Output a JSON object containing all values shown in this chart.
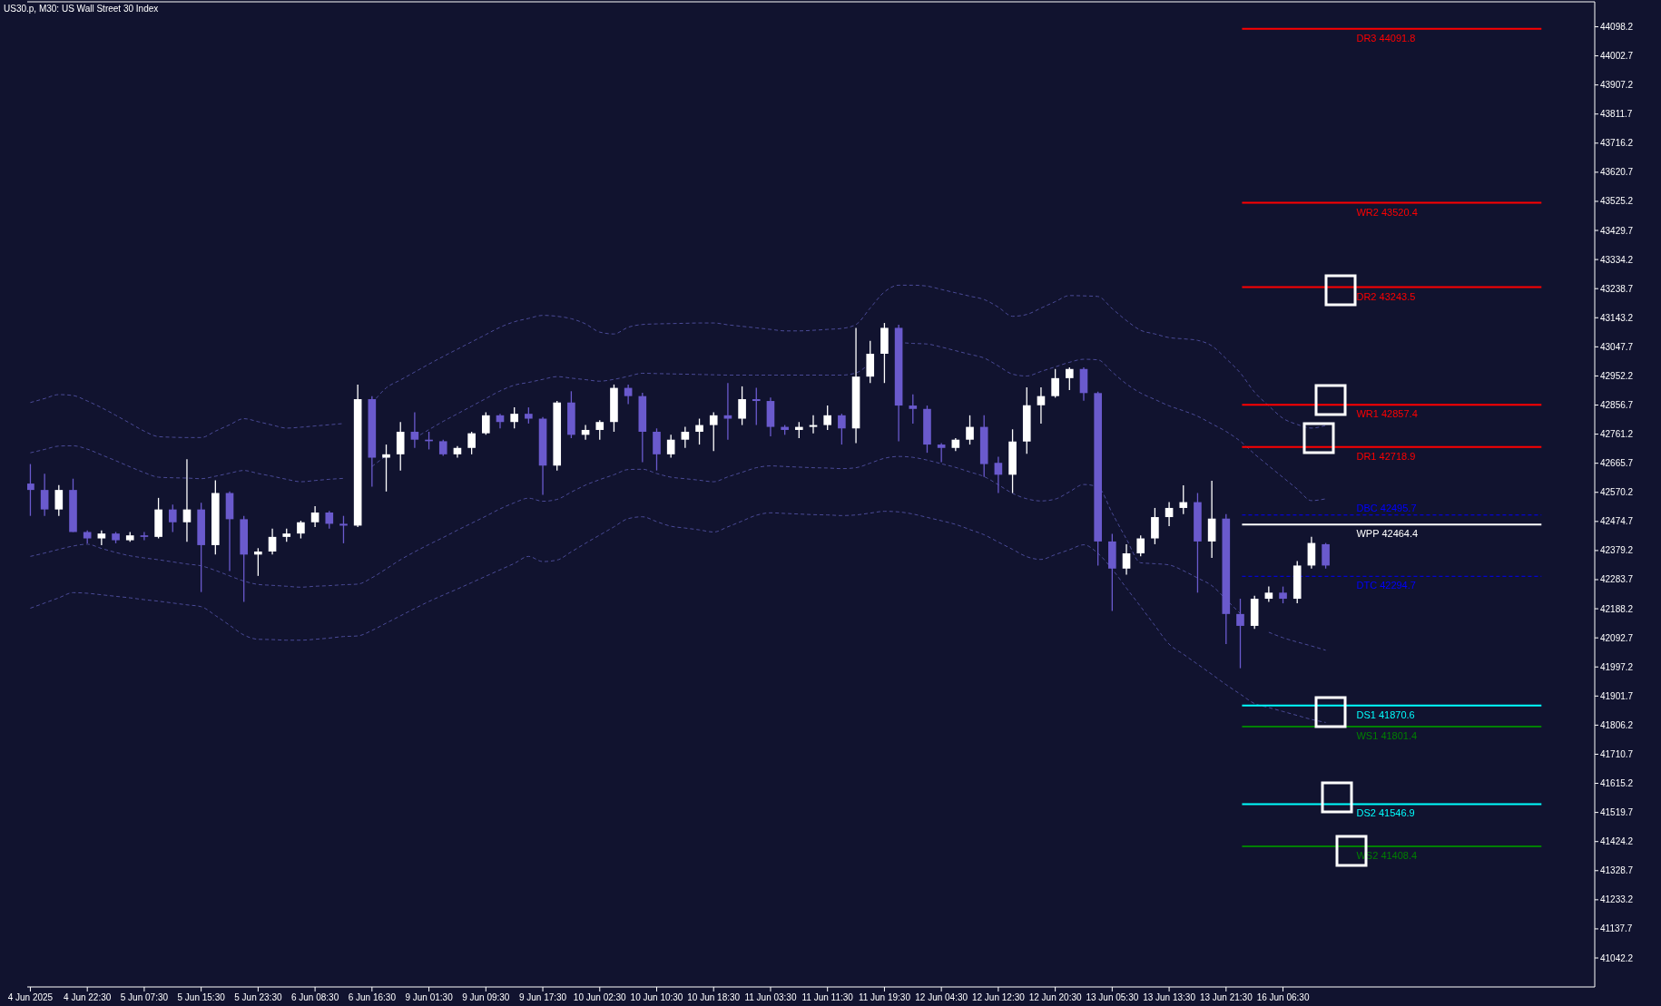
{
  "chart_data": {
    "type": "candlestick",
    "title": "US30.p, M30: US Wall Street 30 Index",
    "categories": [
      "4 Jun 2025",
      null,
      null,
      null,
      "4 Jun 22:30",
      null,
      null,
      null,
      "5 Jun 07:30",
      null,
      null,
      null,
      "5 Jun 15:30",
      null,
      null,
      null,
      "5 Jun 23:30",
      null,
      null,
      null,
      "6 Jun 08:30",
      null,
      null,
      null,
      "6 Jun 16:30",
      null,
      null,
      null,
      "9 Jun 01:30",
      null,
      null,
      null,
      "9 Jun 09:30",
      null,
      null,
      null,
      "9 Jun 17:30",
      null,
      null,
      null,
      "10 Jun 02:30",
      null,
      null,
      null,
      "10 Jun 10:30",
      null,
      null,
      null,
      "10 Jun 18:30",
      null,
      null,
      null,
      "11 Jun 03:30",
      null,
      null,
      null,
      "11 Jun 11:30",
      null,
      null,
      null,
      "11 Jun 19:30",
      null,
      null,
      null,
      "12 Jun 04:30",
      null,
      null,
      null,
      "12 Jun 12:30",
      null,
      null,
      null,
      "12 Jun 20:30",
      null,
      null,
      null,
      "13 Jun 05:30",
      null,
      null,
      null,
      "13 Jun 13:30",
      null,
      null,
      null,
      "13 Jun 21:30",
      null,
      null,
      null,
      "16 Jun 06:30",
      null,
      null,
      null
    ],
    "ohlc": [
      [
        42599,
        42663,
        42493,
        42578
      ],
      [
        42578,
        42631,
        42493,
        42514
      ],
      [
        42514,
        42594,
        42493,
        42578
      ],
      [
        42578,
        42615,
        42440,
        42440
      ],
      [
        42440,
        42445,
        42403,
        42419
      ],
      [
        42419,
        42445,
        42397,
        42435
      ],
      [
        42435,
        42440,
        42403,
        42413
      ],
      [
        42413,
        42440,
        42408,
        42429
      ],
      [
        42429,
        42440,
        42413,
        42424
      ],
      [
        42424,
        42552,
        42419,
        42514
      ],
      [
        42514,
        42530,
        42440,
        42472
      ],
      [
        42472,
        42679,
        42408,
        42514
      ],
      [
        42514,
        42536,
        42243,
        42397
      ],
      [
        42397,
        42610,
        42366,
        42568
      ],
      [
        42568,
        42573,
        42312,
        42482
      ],
      [
        42482,
        42493,
        42211,
        42366
      ],
      [
        42366,
        42387,
        42296,
        42376
      ],
      [
        42376,
        42451,
        42366,
        42424
      ],
      [
        42424,
        42451,
        42408,
        42435
      ],
      [
        42435,
        42477,
        42419,
        42472
      ],
      [
        42472,
        42525,
        42456,
        42504
      ],
      [
        42504,
        42509,
        42451,
        42467
      ],
      [
        42467,
        42493,
        42403,
        42461
      ],
      [
        42461,
        42924,
        42456,
        42876
      ],
      [
        42876,
        42886,
        42589,
        42684
      ],
      [
        42684,
        42727,
        42573,
        42695
      ],
      [
        42695,
        42801,
        42642,
        42769
      ],
      [
        42769,
        42833,
        42716,
        42743
      ],
      [
        42743,
        42769,
        42711,
        42738
      ],
      [
        42738,
        42743,
        42690,
        42695
      ],
      [
        42695,
        42722,
        42684,
        42716
      ],
      [
        42716,
        42769,
        42695,
        42764
      ],
      [
        42764,
        42833,
        42759,
        42823
      ],
      [
        42823,
        42828,
        42780,
        42801
      ],
      [
        42801,
        42849,
        42780,
        42828
      ],
      [
        42828,
        42849,
        42796,
        42812
      ],
      [
        42812,
        42817,
        42562,
        42658
      ],
      [
        42658,
        42870,
        42642,
        42865
      ],
      [
        42865,
        42902,
        42748,
        42759
      ],
      [
        42759,
        42791,
        42743,
        42775
      ],
      [
        42775,
        42807,
        42743,
        42801
      ],
      [
        42801,
        42924,
        42769,
        42913
      ],
      [
        42913,
        42924,
        42860,
        42886
      ],
      [
        42886,
        42897,
        42669,
        42769
      ],
      [
        42769,
        42780,
        42642,
        42695
      ],
      [
        42695,
        42759,
        42684,
        42743
      ],
      [
        42743,
        42785,
        42716,
        42769
      ],
      [
        42769,
        42812,
        42727,
        42791
      ],
      [
        42791,
        42833,
        42706,
        42823
      ],
      [
        42823,
        42929,
        42743,
        42812
      ],
      [
        42812,
        42918,
        42791,
        42876
      ],
      [
        42876,
        42913,
        42791,
        42870
      ],
      [
        42870,
        42881,
        42754,
        42785
      ],
      [
        42785,
        42791,
        42759,
        42775
      ],
      [
        42775,
        42801,
        42748,
        42785
      ],
      [
        42785,
        42823,
        42764,
        42791
      ],
      [
        42791,
        42855,
        42775,
        42823
      ],
      [
        42823,
        42828,
        42727,
        42780
      ],
      [
        42780,
        43110,
        42732,
        42950
      ],
      [
        42950,
        43067,
        42929,
        43025
      ],
      [
        43025,
        43126,
        42929,
        43110
      ],
      [
        43110,
        43120,
        42738,
        42855
      ],
      [
        42855,
        42892,
        42796,
        42844
      ],
      [
        42844,
        42855,
        42700,
        42727
      ],
      [
        42727,
        42732,
        42669,
        42716
      ],
      [
        42716,
        42748,
        42706,
        42743
      ],
      [
        42743,
        42823,
        42727,
        42785
      ],
      [
        42785,
        42823,
        42621,
        42663
      ],
      [
        42667,
        42687,
        42568,
        42628
      ],
      [
        42628,
        42777,
        42568,
        42737
      ],
      [
        42737,
        42915,
        42697,
        42856
      ],
      [
        42856,
        42915,
        42796,
        42886
      ],
      [
        42886,
        42975,
        42881,
        42945
      ],
      [
        42945,
        42980,
        42906,
        42975
      ],
      [
        42975,
        42980,
        42871,
        42896
      ],
      [
        42896,
        42901,
        42330,
        42409
      ],
      [
        42409,
        42434,
        42181,
        42320
      ],
      [
        42320,
        42400,
        42300,
        42370
      ],
      [
        42370,
        42429,
        42360,
        42419
      ],
      [
        42419,
        42519,
        42400,
        42489
      ],
      [
        42489,
        42538,
        42459,
        42519
      ],
      [
        42519,
        42593,
        42499,
        42538
      ],
      [
        42538,
        42568,
        42241,
        42409
      ],
      [
        42409,
        42608,
        42355,
        42484
      ],
      [
        42484,
        42499,
        42072,
        42171
      ],
      [
        42171,
        42221,
        41993,
        42132
      ],
      [
        42132,
        42231,
        42122,
        42221
      ],
      [
        42221,
        42261,
        42211,
        42241
      ],
      [
        42241,
        42261,
        42206,
        42221
      ],
      [
        42221,
        42345,
        42206,
        42330
      ],
      [
        42330,
        42424,
        42320,
        42404
      ],
      [
        42400,
        42404,
        42320,
        42330
      ]
    ],
    "colors": [
      "#6a5acd",
      "#6a5acd",
      "#ffffff",
      "#6a5acd",
      "#6a5acd",
      "#ffffff",
      "#6a5acd",
      "#ffffff",
      "#6a5acd",
      "#ffffff",
      "#6a5acd",
      "#ffffff",
      "#6a5acd",
      "#ffffff",
      "#6a5acd",
      "#6a5acd",
      "#ffffff",
      "#ffffff",
      "#ffffff",
      "#ffffff",
      "#ffffff",
      "#6a5acd",
      "#6a5acd",
      "#ffffff",
      "#6a5acd",
      "#ffffff",
      "#ffffff",
      "#6a5acd",
      "#6a5acd",
      "#6a5acd",
      "#ffffff",
      "#ffffff",
      "#ffffff",
      "#6a5acd",
      "#ffffff",
      "#6a5acd",
      "#6a5acd",
      "#ffffff",
      "#6a5acd",
      "#ffffff",
      "#ffffff",
      "#ffffff",
      "#6a5acd",
      "#6a5acd",
      "#6a5acd",
      "#ffffff",
      "#ffffff",
      "#ffffff",
      "#ffffff",
      "#6a5acd",
      "#ffffff",
      "#6a5acd",
      "#6a5acd",
      "#6a5acd",
      "#ffffff",
      "#ffffff",
      "#ffffff",
      "#6a5acd",
      "#ffffff",
      "#ffffff",
      "#ffffff",
      "#6a5acd",
      "#6a5acd",
      "#6a5acd",
      "#6a5acd",
      "#ffffff",
      "#ffffff",
      "#6a5acd",
      "#6a5acd",
      "#ffffff",
      "#ffffff",
      "#ffffff",
      "#ffffff",
      "#ffffff",
      "#6a5acd",
      "#6a5acd",
      "#6a5acd",
      "#ffffff",
      "#ffffff",
      "#ffffff",
      "#ffffff",
      "#ffffff",
      "#6a5acd",
      "#ffffff",
      "#6a5acd",
      "#6a5acd",
      "#ffffff",
      "#ffffff",
      "#6a5acd",
      "#ffffff",
      "#ffffff",
      "#6a5acd"
    ],
    "series": [
      {
        "type": "line",
        "color": "#4a4a96",
        "line_style": "dashed",
        "values": [
          42865,
          42878,
          42891,
          42888,
          42870,
          42848,
          42823,
          42797,
          42771,
          42753,
          42751,
          42750,
          42750,
          42771,
          42792,
          42812,
          42802,
          42791,
          42781,
          42784,
          42788,
          42792,
          42796,
          null,
          42862,
          42913,
          42939,
          42965,
          42991,
          43016,
          43040,
          43064,
          43088,
          43112,
          43130,
          43141,
          43151,
          43148,
          43140,
          43123,
          43096,
          43090,
          43112,
          43121,
          43123,
          43124,
          43125,
          43126,
          43126,
          43120,
          43115,
          43110,
          43105,
          43100,
          43100,
          43102,
          43105,
          43108,
          43121,
          43175,
          43228,
          43250,
          43250,
          43247,
          43236,
          43225,
          43214,
          43203,
          43178,
          43148,
          43154,
          43175,
          43196,
          43216,
          43215,
          43213,
          43173,
          43134,
          43102,
          43090,
          43078,
          43074,
          43069,
          43051,
          43009,
          42962,
          42899,
          42854,
          42813,
          42793,
          42781,
          42790
        ]
      },
      {
        "type": "line",
        "color": "#4a4a96",
        "line_style": "dashed",
        "values": [
          42700,
          42711,
          42722,
          42723,
          42712,
          42693,
          42674,
          42654,
          42635,
          42620,
          42618,
          42617,
          42615,
          42623,
          42633,
          42642,
          42632,
          42623,
          42613,
          42605,
          42609,
          42613,
          42616,
          null,
          42655,
          42691,
          null,
          42748,
          42776,
          42803,
          42828,
          42853,
          42878,
          42903,
          42922,
          42931,
          42941,
          42950,
          42945,
          42940,
          42935,
          42941,
          42951,
          42961,
          42960,
          42959,
          42958,
          42957,
          42956,
          42955,
          42955,
          42955,
          42955,
          42955,
          42955,
          42955,
          42955,
          42955,
          42962,
          42996,
          null,
          43062,
          43059,
          43057,
          43047,
          43035,
          43023,
          43011,
          42985,
          42958,
          42952,
          42967,
          42982,
          42997,
          43007,
          43005,
          42965,
          42926,
          42896,
          42875,
          42854,
          42838,
          42820,
          42795,
          42770,
          42738,
          42696,
          42657,
          42619,
          42581,
          42543,
          42549
        ]
      },
      {
        "type": "line",
        "color": "#4a4a96",
        "line_style": "dashed",
        "values": [
          42360,
          42371,
          42383,
          42394,
          42400,
          42386,
          42373,
          42362,
          42355,
          42349,
          42342,
          42335,
          42329,
          42314,
          42296,
          42279,
          42268,
          42265,
          42262,
          42259,
          42262,
          42264,
          42267,
          42269,
          42290,
          42319,
          42349,
          42375,
          42399,
          42422,
          42446,
          42469,
          42492,
          42516,
          42536,
          42551,
          42541,
          42547,
          42571,
          42594,
          42612,
          42628,
          42645,
          42646,
          42632,
          42620,
          42615,
          42610,
          42605,
          42621,
          42636,
          42651,
          42657,
          42655,
          42653,
          42651,
          42650,
          42648,
          42651,
          42666,
          42682,
          42688,
          42685,
          42676,
          42664,
          42652,
          42637,
          42622,
          42595,
          42567,
          42549,
          42542,
          42548,
          42572,
          42596,
          42588,
          42502,
          42417,
          42339,
          42336,
          42332,
          42313,
          42289,
          42264,
          42219,
          42172,
          null,
          42111,
          42093,
          42079,
          42066,
          42052
        ]
      },
      {
        "type": "line",
        "color": "#4a4a96",
        "line_style": "dashed",
        "values": [
          42190,
          42207,
          42224,
          42241,
          42239,
          42234,
          42229,
          42224,
          42218,
          42213,
          42207,
          42201,
          42195,
          42166,
          42134,
          42102,
          42088,
          42087,
          42085,
          42085,
          42088,
          42092,
          42097,
          42099,
          42117,
          42141,
          42165,
          42189,
          42212,
          42233,
          42253,
          42274,
          42295,
          42316,
          42337,
          42360,
          42343,
          42348,
          42375,
          42403,
          42430,
          42457,
          42484,
          42490,
          42474,
          42459,
          42453,
          42447,
          42440,
          42457,
          42476,
          42495,
          42503,
          42501,
          42499,
          42497,
          42496,
          42494,
          42496,
          42502,
          42508,
          42506,
          42499,
          42488,
          42477,
          42465,
          42448,
          42431,
          42407,
          42383,
          42359,
          42350,
          42366,
          42382,
          42398,
          42370,
          42318,
          42256,
          42195,
          42133,
          42072,
          42039,
          42006,
          41973,
          41939,
          41908,
          41877,
          41864,
          41851,
          41838,
          41825,
          41815
        ]
      }
    ],
    "ylim": [
      40947,
      44180
    ],
    "yticks": [
      44098.2,
      44002.7,
      43907.2,
      43811.7,
      43716.2,
      43620.7,
      43525.2,
      43429.7,
      43334.2,
      43238.7,
      43143.2,
      43047.7,
      42952.2,
      42856.7,
      42761.2,
      42665.7,
      42570.2,
      42474.7,
      42379.2,
      42283.7,
      42188.2,
      42092.7,
      41997.2,
      41901.7,
      41806.2,
      41710.7,
      41615.2,
      41519.7,
      41424.2,
      41328.7,
      41233.2,
      41137.7,
      41042.2
    ],
    "ref_lines": [
      {
        "axis": "y",
        "value": 44091.8,
        "label": "DR3 44091.8",
        "color": "#ff0000"
      },
      {
        "axis": "y",
        "value": 43520.4,
        "label": "WR2 43520.4",
        "color": "#ff0000"
      },
      {
        "axis": "y",
        "value": 43243.5,
        "label": "DR2 43243.5",
        "color": "#ff0000"
      },
      {
        "axis": "y",
        "value": 42857.4,
        "label": "WR1 42857.4",
        "color": "#ff0000"
      },
      {
        "axis": "y",
        "value": 42718.9,
        "label": "DR1 42718.9",
        "color": "#ff0000"
      },
      {
        "axis": "y",
        "value": 42495.7,
        "label": "DBC 42495.7",
        "color": "#0000ff",
        "line_style": "dashed"
      },
      {
        "axis": "y",
        "value": 42464.4,
        "label": "WPP 42464.4",
        "color": "#ffffff"
      },
      {
        "axis": "y",
        "value": 42294.7,
        "label": "DTC 42294.7",
        "color": "#0000ff",
        "line_style": "dashed"
      },
      {
        "axis": "y",
        "value": 41870.6,
        "label": "DS1 41870.6",
        "color": "#00ffff"
      },
      {
        "axis": "y",
        "value": 41801.4,
        "label": "WS1 41801.4",
        "color": "#008000"
      },
      {
        "axis": "y",
        "value": 41546.9,
        "label": "DS2 41546.9",
        "color": "#00ffff"
      },
      {
        "axis": "y",
        "value": 41408.4,
        "label": "WS2 41408.4",
        "color": "#008000"
      }
    ]
  }
}
